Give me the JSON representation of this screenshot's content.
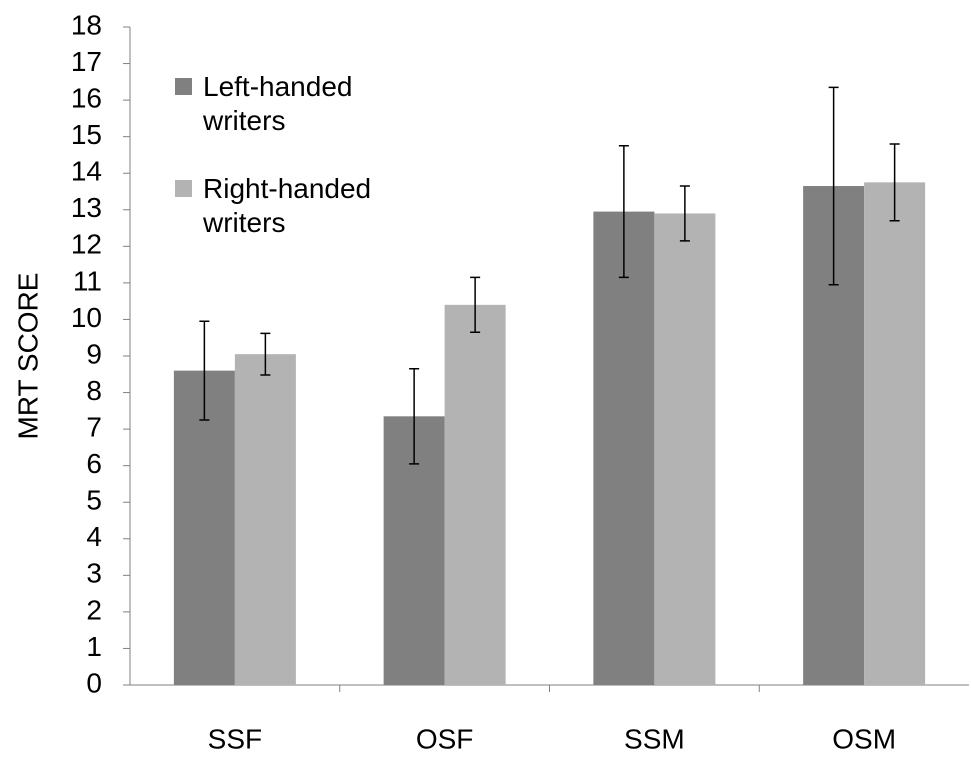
{
  "chart_data": {
    "type": "bar",
    "y_label": "MRT SCORE",
    "categories": [
      "SSF",
      "OSF",
      "SSM",
      "OSM"
    ],
    "series": [
      {
        "name": "Left-handed writers",
        "color": "#808080",
        "values": [
          8.6,
          7.35,
          12.95,
          13.65
        ],
        "errors": [
          1.35,
          1.3,
          1.8,
          2.7
        ]
      },
      {
        "name": "Right-handed writers",
        "color": "#b3b3b3",
        "values": [
          9.05,
          10.4,
          12.9,
          13.75
        ],
        "errors": [
          0.57,
          0.75,
          0.75,
          1.05
        ]
      }
    ],
    "ylim": [
      0,
      18
    ],
    "yticks": [
      0,
      1,
      2,
      3,
      4,
      5,
      6,
      7,
      8,
      9,
      10,
      11,
      12,
      13,
      14,
      15,
      16,
      17,
      18
    ],
    "grid": false,
    "legend": "upper left"
  }
}
